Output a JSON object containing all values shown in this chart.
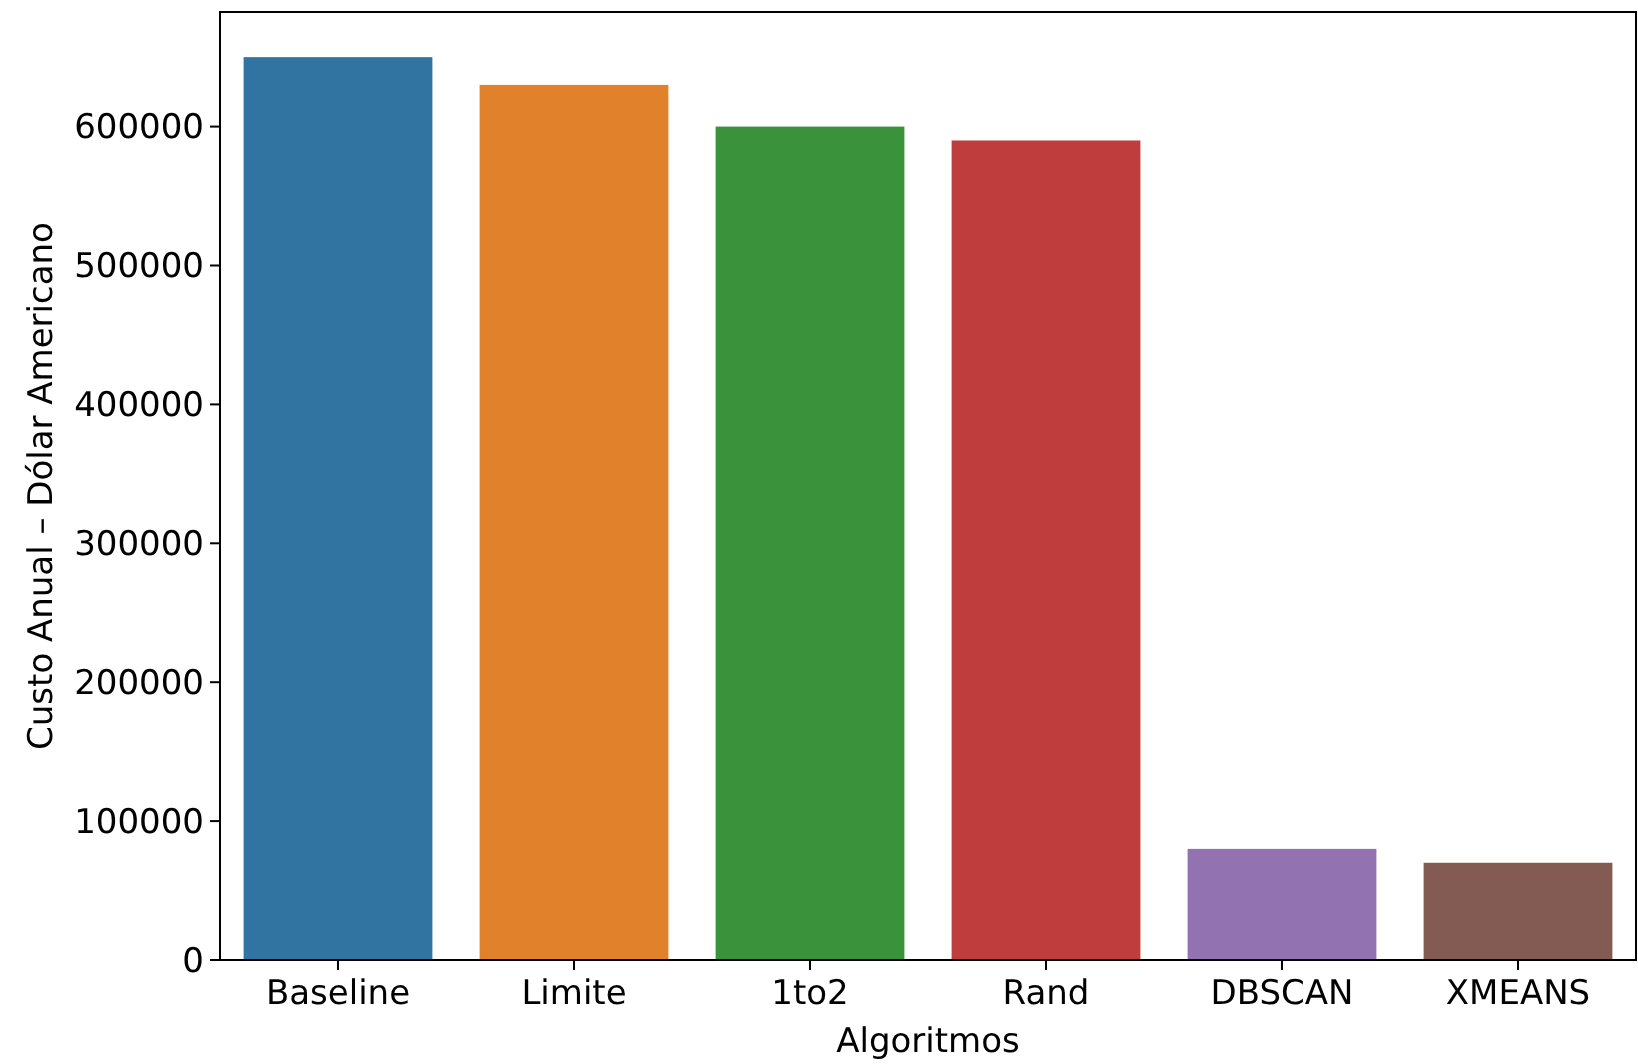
{
  "chart_data": {
    "type": "bar",
    "xlabel": "Algoritmos",
    "ylabel": "Custo Anual – Dólar Americano",
    "categories": [
      "Baseline",
      "Limite",
      "1to2",
      "Rand",
      "DBSCAN",
      "XMEANS"
    ],
    "values": [
      650000,
      630000,
      600000,
      590000,
      80000,
      70000
    ],
    "colors": [
      "#3274a1",
      "#e1812c",
      "#3a923a",
      "#c03d3e",
      "#9372b2",
      "#845b53"
    ],
    "ylim": [
      0,
      682500
    ],
    "yticks": [
      0,
      100000,
      200000,
      300000,
      400000,
      500000,
      600000
    ],
    "grid": false
  }
}
